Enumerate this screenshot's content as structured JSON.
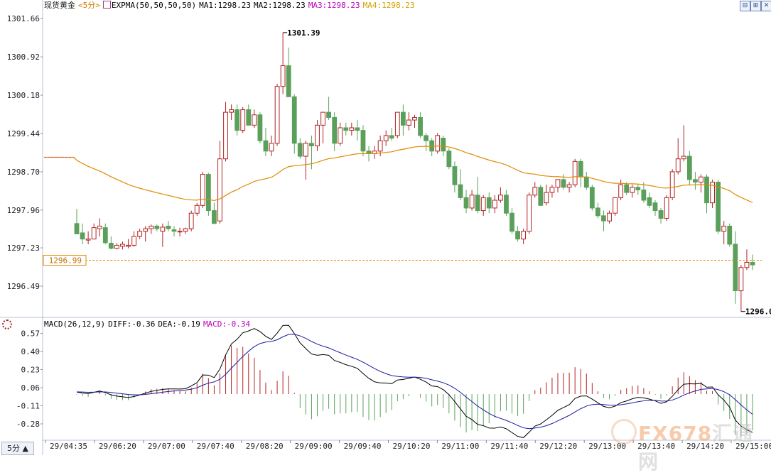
{
  "header": {
    "instrument": "现货黄金",
    "period": "<5分>",
    "indicator_name": "EXPMA(50,50,50,50)",
    "ma1": "MA1:1298.23",
    "ma2": "MA2:1298.23",
    "ma3": "MA3:1298.23",
    "ma4": "MA4:1298.23",
    "colors": {
      "instrument": "#1a1a1a",
      "period": "#d47a00",
      "ma1": "#000000",
      "ma2": "#000000",
      "ma3": "#c000c0",
      "ma4": "#d4a000"
    }
  },
  "window_buttons": [
    "⊟",
    "⊞",
    "✕"
  ],
  "macd_header": {
    "name": "MACD(26,12,9)",
    "diff": "DIFF:-0.36",
    "dea": "DEA:-0.19",
    "macd": "MACD:-0.34",
    "colors": {
      "name": "#000000",
      "diff": "#000000",
      "dea": "#000000",
      "macd": "#c000c0"
    }
  },
  "corner_tab": "5分 ▲",
  "watermark": {
    "brand": "FX678",
    "cn": "汇通网"
  },
  "chart_data": [
    {
      "type": "candlestick",
      "title": "现货黄金 <5分>",
      "y_ticks": [
        "1301.66",
        "1300.92",
        "1300.18",
        "1299.44",
        "1298.70",
        "1297.96",
        "1297.23",
        "1296.49"
      ],
      "ylim": [
        1295.9,
        1301.8
      ],
      "current_price": "1296.99",
      "annotations": {
        "high": "1301.39",
        "low": "1296.0"
      },
      "colors": {
        "up": "#b22222",
        "down": "#5aa05a",
        "expma": "#e08a00",
        "price_line": "#e08a00"
      },
      "candles": [
        {
          "o": 1297.7,
          "h": 1297.98,
          "l": 1297.5,
          "c": 1297.5
        },
        {
          "o": 1297.52,
          "h": 1297.7,
          "l": 1297.3,
          "c": 1297.4
        },
        {
          "o": 1297.38,
          "h": 1297.55,
          "l": 1297.3,
          "c": 1297.4
        },
        {
          "o": 1297.4,
          "h": 1297.7,
          "l": 1297.4,
          "c": 1297.62
        },
        {
          "o": 1297.6,
          "h": 1297.8,
          "l": 1297.45,
          "c": 1297.65
        },
        {
          "o": 1297.62,
          "h": 1297.7,
          "l": 1297.3,
          "c": 1297.33
        },
        {
          "o": 1297.32,
          "h": 1297.45,
          "l": 1297.2,
          "c": 1297.22
        },
        {
          "o": 1297.22,
          "h": 1297.32,
          "l": 1297.2,
          "c": 1297.28
        },
        {
          "o": 1297.26,
          "h": 1297.35,
          "l": 1297.2,
          "c": 1297.3
        },
        {
          "o": 1297.26,
          "h": 1297.4,
          "l": 1297.22,
          "c": 1297.28
        },
        {
          "o": 1297.28,
          "h": 1297.55,
          "l": 1297.25,
          "c": 1297.45
        },
        {
          "o": 1297.45,
          "h": 1297.6,
          "l": 1297.4,
          "c": 1297.55
        },
        {
          "o": 1297.55,
          "h": 1297.65,
          "l": 1297.35,
          "c": 1297.6
        },
        {
          "o": 1297.6,
          "h": 1297.68,
          "l": 1297.5,
          "c": 1297.65
        },
        {
          "o": 1297.65,
          "h": 1297.68,
          "l": 1297.55,
          "c": 1297.6
        },
        {
          "o": 1297.55,
          "h": 1297.7,
          "l": 1297.25,
          "c": 1297.63
        },
        {
          "o": 1297.65,
          "h": 1297.75,
          "l": 1297.55,
          "c": 1297.6
        },
        {
          "o": 1297.58,
          "h": 1297.65,
          "l": 1297.45,
          "c": 1297.55
        },
        {
          "o": 1297.55,
          "h": 1297.62,
          "l": 1297.45,
          "c": 1297.55
        },
        {
          "o": 1297.55,
          "h": 1297.62,
          "l": 1297.5,
          "c": 1297.6
        },
        {
          "o": 1297.6,
          "h": 1297.95,
          "l": 1297.55,
          "c": 1297.9
        },
        {
          "o": 1297.9,
          "h": 1298.1,
          "l": 1297.85,
          "c": 1298.05
        },
        {
          "o": 1298.05,
          "h": 1298.7,
          "l": 1298.0,
          "c": 1298.65
        },
        {
          "o": 1298.65,
          "h": 1298.68,
          "l": 1297.85,
          "c": 1297.95
        },
        {
          "o": 1297.95,
          "h": 1298.1,
          "l": 1297.7,
          "c": 1297.7
        },
        {
          "o": 1297.75,
          "h": 1299.3,
          "l": 1297.7,
          "c": 1298.95
        },
        {
          "o": 1298.95,
          "h": 1300.05,
          "l": 1298.9,
          "c": 1299.85
        },
        {
          "o": 1299.85,
          "h": 1300.0,
          "l": 1299.7,
          "c": 1299.9
        },
        {
          "o": 1299.9,
          "h": 1300.0,
          "l": 1299.4,
          "c": 1299.5
        },
        {
          "o": 1299.5,
          "h": 1299.95,
          "l": 1299.45,
          "c": 1299.9
        },
        {
          "o": 1299.9,
          "h": 1300.0,
          "l": 1299.6,
          "c": 1299.6
        },
        {
          "o": 1299.6,
          "h": 1299.9,
          "l": 1299.55,
          "c": 1299.8
        },
        {
          "o": 1299.8,
          "h": 1299.85,
          "l": 1299.25,
          "c": 1299.3
        },
        {
          "o": 1299.3,
          "h": 1299.55,
          "l": 1299.0,
          "c": 1299.1
        },
        {
          "o": 1299.1,
          "h": 1299.4,
          "l": 1299.0,
          "c": 1299.25
        },
        {
          "o": 1299.25,
          "h": 1300.4,
          "l": 1299.2,
          "c": 1300.35
        },
        {
          "o": 1300.35,
          "h": 1301.39,
          "l": 1300.2,
          "c": 1300.75
        },
        {
          "o": 1300.75,
          "h": 1301.1,
          "l": 1300.15,
          "c": 1300.15
        },
        {
          "o": 1300.15,
          "h": 1300.2,
          "l": 1299.05,
          "c": 1299.25
        },
        {
          "o": 1299.25,
          "h": 1299.35,
          "l": 1298.95,
          "c": 1299.0
        },
        {
          "o": 1299.0,
          "h": 1299.3,
          "l": 1298.55,
          "c": 1299.25
        },
        {
          "o": 1299.25,
          "h": 1299.4,
          "l": 1298.75,
          "c": 1299.2
        },
        {
          "o": 1299.2,
          "h": 1299.7,
          "l": 1299.1,
          "c": 1299.6
        },
        {
          "o": 1299.6,
          "h": 1299.85,
          "l": 1299.25,
          "c": 1299.85
        },
        {
          "o": 1299.85,
          "h": 1300.15,
          "l": 1299.7,
          "c": 1299.75
        },
        {
          "o": 1299.75,
          "h": 1299.85,
          "l": 1299.1,
          "c": 1299.25
        },
        {
          "o": 1299.25,
          "h": 1299.65,
          "l": 1299.2,
          "c": 1299.55
        },
        {
          "o": 1299.55,
          "h": 1299.65,
          "l": 1299.4,
          "c": 1299.5
        },
        {
          "o": 1299.5,
          "h": 1299.65,
          "l": 1299.4,
          "c": 1299.55
        },
        {
          "o": 1299.55,
          "h": 1299.7,
          "l": 1299.3,
          "c": 1299.5
        },
        {
          "o": 1299.5,
          "h": 1299.6,
          "l": 1299.0,
          "c": 1299.1
        },
        {
          "o": 1299.1,
          "h": 1299.2,
          "l": 1298.9,
          "c": 1299.05
        },
        {
          "o": 1299.05,
          "h": 1299.2,
          "l": 1298.95,
          "c": 1299.1
        },
        {
          "o": 1299.1,
          "h": 1299.4,
          "l": 1299.0,
          "c": 1299.3
        },
        {
          "o": 1299.3,
          "h": 1299.5,
          "l": 1299.2,
          "c": 1299.4
        },
        {
          "o": 1299.4,
          "h": 1299.55,
          "l": 1299.3,
          "c": 1299.35
        },
        {
          "o": 1299.4,
          "h": 1299.85,
          "l": 1299.35,
          "c": 1299.85
        },
        {
          "o": 1299.85,
          "h": 1300.0,
          "l": 1299.4,
          "c": 1299.6
        },
        {
          "o": 1299.6,
          "h": 1299.85,
          "l": 1299.5,
          "c": 1299.7
        },
        {
          "o": 1299.7,
          "h": 1299.8,
          "l": 1299.55,
          "c": 1299.75
        },
        {
          "o": 1299.75,
          "h": 1299.85,
          "l": 1299.35,
          "c": 1299.4
        },
        {
          "o": 1299.4,
          "h": 1299.45,
          "l": 1299.1,
          "c": 1299.3
        },
        {
          "o": 1299.3,
          "h": 1299.35,
          "l": 1299.0,
          "c": 1299.1
        },
        {
          "o": 1299.1,
          "h": 1299.45,
          "l": 1299.05,
          "c": 1299.4
        },
        {
          "o": 1299.35,
          "h": 1299.4,
          "l": 1299.0,
          "c": 1299.1
        },
        {
          "o": 1299.1,
          "h": 1299.15,
          "l": 1298.75,
          "c": 1298.8
        },
        {
          "o": 1298.8,
          "h": 1298.9,
          "l": 1298.3,
          "c": 1298.45
        },
        {
          "o": 1298.45,
          "h": 1298.75,
          "l": 1298.15,
          "c": 1298.2
        },
        {
          "o": 1298.2,
          "h": 1298.35,
          "l": 1297.9,
          "c": 1298.0
        },
        {
          "o": 1298.0,
          "h": 1298.35,
          "l": 1297.95,
          "c": 1298.25
        },
        {
          "o": 1298.25,
          "h": 1298.6,
          "l": 1297.9,
          "c": 1297.95
        },
        {
          "o": 1297.95,
          "h": 1298.25,
          "l": 1297.85,
          "c": 1298.2
        },
        {
          "o": 1298.2,
          "h": 1298.3,
          "l": 1297.9,
          "c": 1298.0
        },
        {
          "o": 1298.0,
          "h": 1298.25,
          "l": 1297.9,
          "c": 1298.15
        },
        {
          "o": 1298.15,
          "h": 1298.4,
          "l": 1298.1,
          "c": 1298.25
        },
        {
          "o": 1298.25,
          "h": 1298.35,
          "l": 1297.85,
          "c": 1297.9
        },
        {
          "o": 1297.9,
          "h": 1298.0,
          "l": 1297.5,
          "c": 1297.55
        },
        {
          "o": 1297.55,
          "h": 1297.65,
          "l": 1297.35,
          "c": 1297.4
        },
        {
          "o": 1297.4,
          "h": 1297.6,
          "l": 1297.3,
          "c": 1297.55
        },
        {
          "o": 1297.55,
          "h": 1298.3,
          "l": 1297.5,
          "c": 1298.25
        },
        {
          "o": 1298.25,
          "h": 1298.5,
          "l": 1298.2,
          "c": 1298.4
        },
        {
          "o": 1298.4,
          "h": 1298.45,
          "l": 1298.05,
          "c": 1298.05
        },
        {
          "o": 1298.1,
          "h": 1298.45,
          "l": 1298.05,
          "c": 1298.3
        },
        {
          "o": 1298.3,
          "h": 1298.45,
          "l": 1298.2,
          "c": 1298.4
        },
        {
          "o": 1298.4,
          "h": 1298.55,
          "l": 1298.3,
          "c": 1298.55
        },
        {
          "o": 1298.55,
          "h": 1298.65,
          "l": 1298.35,
          "c": 1298.4
        },
        {
          "o": 1298.4,
          "h": 1298.5,
          "l": 1298.3,
          "c": 1298.45
        },
        {
          "o": 1298.45,
          "h": 1298.95,
          "l": 1298.4,
          "c": 1298.9
        },
        {
          "o": 1298.9,
          "h": 1298.95,
          "l": 1298.4,
          "c": 1298.6
        },
        {
          "o": 1298.6,
          "h": 1298.7,
          "l": 1298.35,
          "c": 1298.4
        },
        {
          "o": 1298.4,
          "h": 1298.45,
          "l": 1297.95,
          "c": 1298.0
        },
        {
          "o": 1298.0,
          "h": 1298.1,
          "l": 1297.8,
          "c": 1297.85
        },
        {
          "o": 1297.85,
          "h": 1297.95,
          "l": 1297.55,
          "c": 1297.75
        },
        {
          "o": 1297.75,
          "h": 1297.95,
          "l": 1297.7,
          "c": 1297.9
        },
        {
          "o": 1297.9,
          "h": 1298.2,
          "l": 1297.85,
          "c": 1298.2
        },
        {
          "o": 1298.2,
          "h": 1298.55,
          "l": 1298.15,
          "c": 1298.45
        },
        {
          "o": 1298.45,
          "h": 1298.5,
          "l": 1298.25,
          "c": 1298.3
        },
        {
          "o": 1298.3,
          "h": 1298.45,
          "l": 1298.2,
          "c": 1298.4
        },
        {
          "o": 1298.4,
          "h": 1298.45,
          "l": 1298.25,
          "c": 1298.35
        },
        {
          "o": 1298.35,
          "h": 1298.5,
          "l": 1298.1,
          "c": 1298.15
        },
        {
          "o": 1298.2,
          "h": 1298.3,
          "l": 1298.0,
          "c": 1298.05
        },
        {
          "o": 1298.1,
          "h": 1298.15,
          "l": 1297.85,
          "c": 1297.95
        },
        {
          "o": 1297.95,
          "h": 1298.0,
          "l": 1297.7,
          "c": 1297.8
        },
        {
          "o": 1297.8,
          "h": 1298.25,
          "l": 1297.75,
          "c": 1298.2
        },
        {
          "o": 1298.2,
          "h": 1298.75,
          "l": 1298.15,
          "c": 1298.7
        },
        {
          "o": 1298.7,
          "h": 1299.35,
          "l": 1298.65,
          "c": 1298.95
        },
        {
          "o": 1298.95,
          "h": 1299.6,
          "l": 1298.9,
          "c": 1299.0
        },
        {
          "o": 1299.0,
          "h": 1299.1,
          "l": 1298.45,
          "c": 1298.55
        },
        {
          "o": 1298.55,
          "h": 1298.7,
          "l": 1298.35,
          "c": 1298.5
        },
        {
          "o": 1298.5,
          "h": 1298.65,
          "l": 1298.3,
          "c": 1298.6
        },
        {
          "o": 1298.6,
          "h": 1298.65,
          "l": 1297.9,
          "c": 1298.1
        },
        {
          "o": 1298.1,
          "h": 1298.55,
          "l": 1298.0,
          "c": 1298.5
        },
        {
          "o": 1298.5,
          "h": 1298.55,
          "l": 1297.5,
          "c": 1297.55
        },
        {
          "o": 1297.55,
          "h": 1297.75,
          "l": 1297.3,
          "c": 1297.65
        },
        {
          "o": 1297.65,
          "h": 1297.7,
          "l": 1297.25,
          "c": 1297.3
        },
        {
          "o": 1297.3,
          "h": 1297.55,
          "l": 1296.15,
          "c": 1296.4
        },
        {
          "o": 1296.4,
          "h": 1296.9,
          "l": 1296.0,
          "c": 1296.85
        },
        {
          "o": 1296.85,
          "h": 1297.2,
          "l": 1296.8,
          "c": 1296.95
        },
        {
          "o": 1296.95,
          "h": 1297.1,
          "l": 1296.8,
          "c": 1296.9
        }
      ],
      "expma_start": 1298.98,
      "expma_period": 50
    },
    {
      "type": "macd",
      "title": "MACD(26,12,9)",
      "y_ticks": [
        "0.57",
        "0.40",
        "0.23",
        "0.06",
        "-0.11",
        "-0.28"
      ],
      "ylim": [
        -0.42,
        0.62
      ],
      "x_ticks": [
        "29/04:35",
        "29/06:20",
        "29/07:00",
        "29/07:40",
        "29/08:20",
        "29/09:00",
        "29/09:40",
        "29/10:20",
        "29/11:00",
        "29/11:40",
        "29/12:20",
        "29/13:00",
        "29/13:40",
        "29/14:20",
        "29/15:00"
      ],
      "diff_end": -0.36,
      "dea_end": -0.19,
      "macd_end": -0.34,
      "colors": {
        "diff": "#000000",
        "dea": "#1a1aa0",
        "hist_up": "#b22222",
        "hist_down": "#5aa05a"
      }
    }
  ]
}
